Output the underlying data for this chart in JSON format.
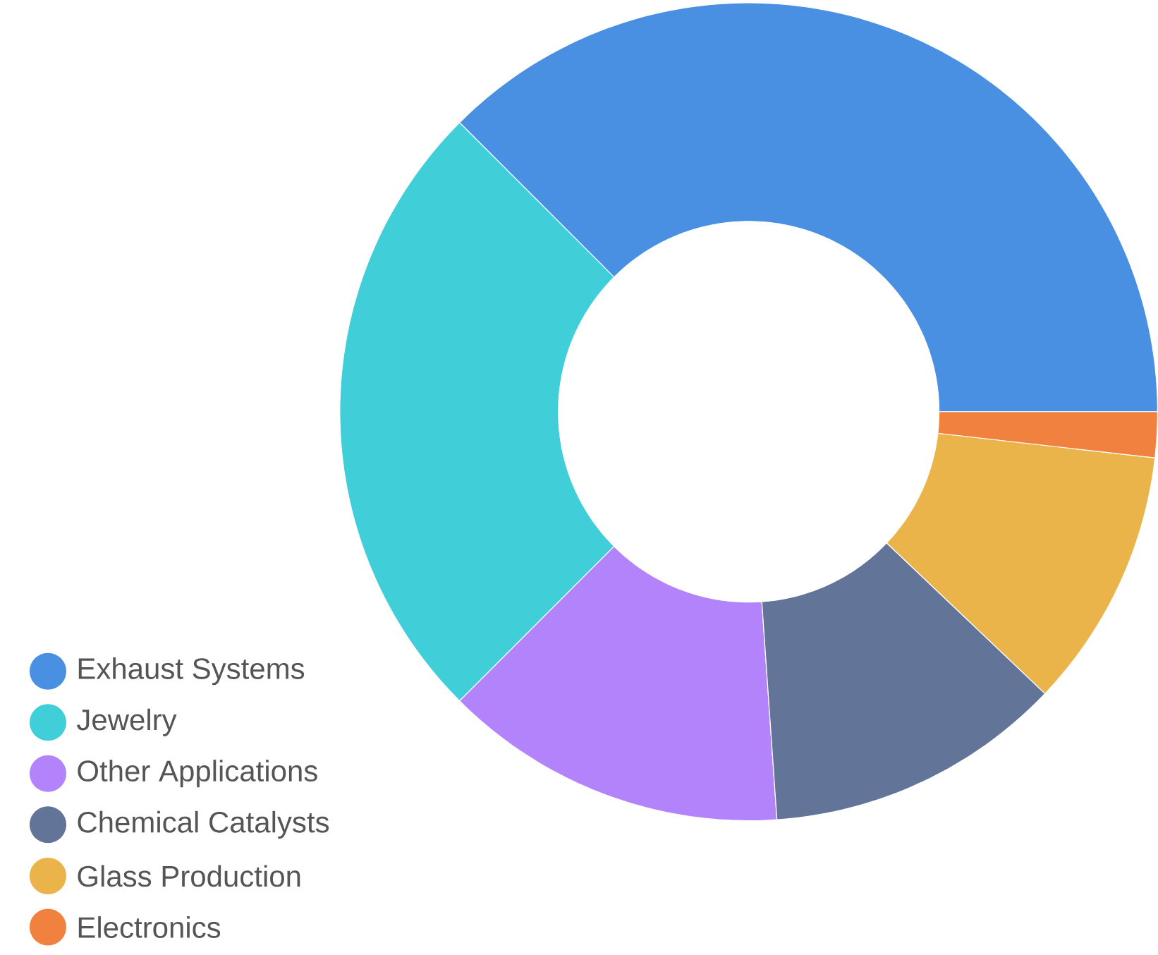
{
  "chart_data": {
    "type": "donut",
    "categories": [
      "Exhaust Systems",
      "Jewelry",
      "Other Applications",
      "Chemical Catalysts",
      "Glass Production",
      "Electronics"
    ],
    "values": [
      37.5,
      25,
      13.6,
      11.8,
      10.3,
      1.8
    ],
    "colors": [
      "#4a90e2",
      "#40cfd9",
      "#b383fc",
      "#627599",
      "#ebb44b",
      "#f0813f"
    ],
    "legend": "bottom left"
  }
}
